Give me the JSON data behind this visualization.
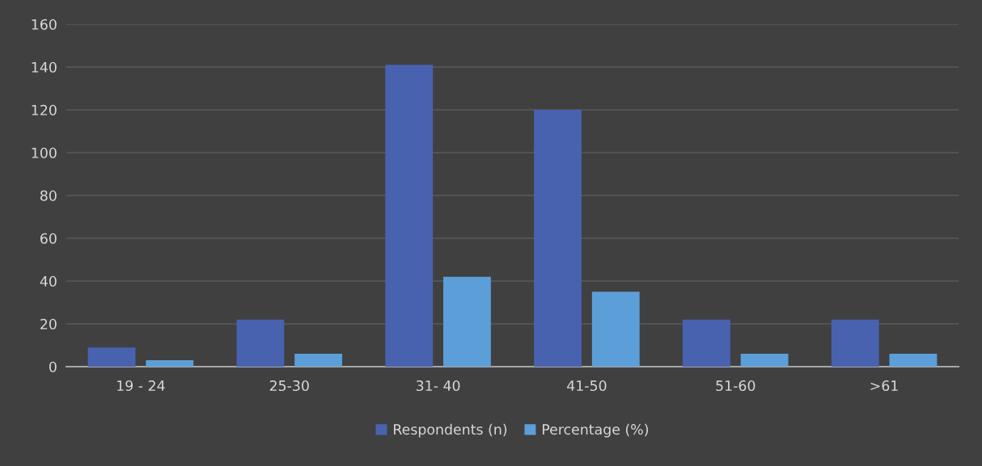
{
  "chart_data": {
    "type": "bar",
    "categories": [
      "19 - 24",
      "25-30",
      "31- 40",
      "41-50",
      "51-60",
      ">61"
    ],
    "series": [
      {
        "name": "Respondents (n)",
        "color": "#4862b0",
        "values": [
          9,
          22,
          141,
          120,
          22,
          22
        ]
      },
      {
        "name": "Percentage (%)",
        "color": "#5c9fd8",
        "values": [
          3,
          6,
          42,
          35,
          6,
          6
        ]
      }
    ],
    "ylim": [
      0,
      160
    ],
    "yticks": [
      0,
      20,
      40,
      60,
      80,
      100,
      120,
      140,
      160
    ],
    "grid": "y",
    "legend": "bottom"
  }
}
